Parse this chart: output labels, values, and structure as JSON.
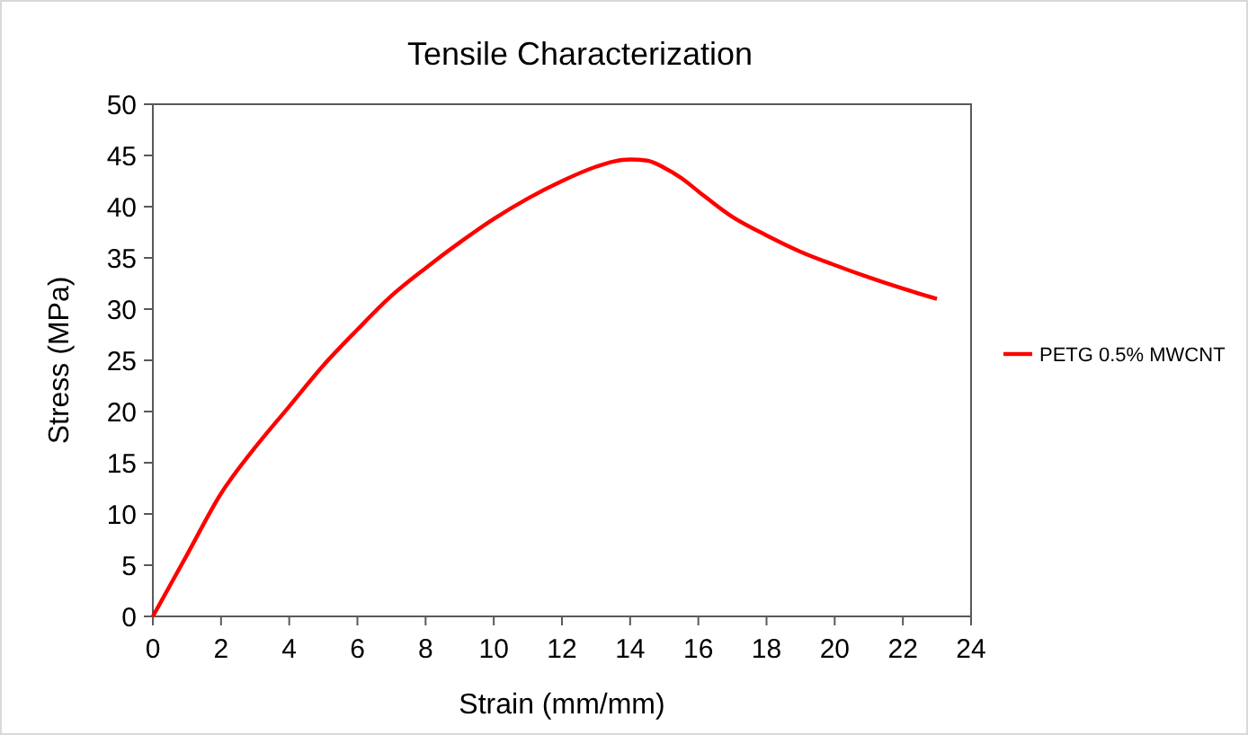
{
  "chart_data": {
    "type": "line",
    "title": "Tensile Characterization",
    "xlabel": "Strain (mm/mm)",
    "ylabel": "Stress (MPa)",
    "xlim": [
      0,
      24
    ],
    "xticks": [
      0,
      2,
      4,
      6,
      8,
      10,
      12,
      14,
      16,
      18,
      20,
      22,
      24
    ],
    "ylim": [
      0,
      50
    ],
    "yticks": [
      0,
      5,
      10,
      15,
      20,
      25,
      30,
      35,
      40,
      45,
      50
    ],
    "legend": "right",
    "grid": false,
    "series": [
      {
        "name": "PETG 0.5% MWCNT",
        "color": "#ff0000",
        "x": [
          0,
          0.5,
          1,
          2,
          3,
          4,
          5,
          6,
          7,
          8,
          9,
          10,
          11,
          12,
          13,
          13.5,
          14,
          14.5,
          15,
          15.5,
          16,
          17,
          18,
          19,
          20,
          21,
          22,
          23
        ],
        "values": [
          0,
          3,
          6,
          12,
          16.5,
          20.5,
          24.5,
          28,
          31.3,
          34,
          36.5,
          38.8,
          40.8,
          42.5,
          43.9,
          44.4,
          44.6,
          44.5,
          43.8,
          42.8,
          41.5,
          39,
          37.2,
          35.6,
          34.3,
          33.1,
          32,
          31
        ]
      }
    ]
  }
}
